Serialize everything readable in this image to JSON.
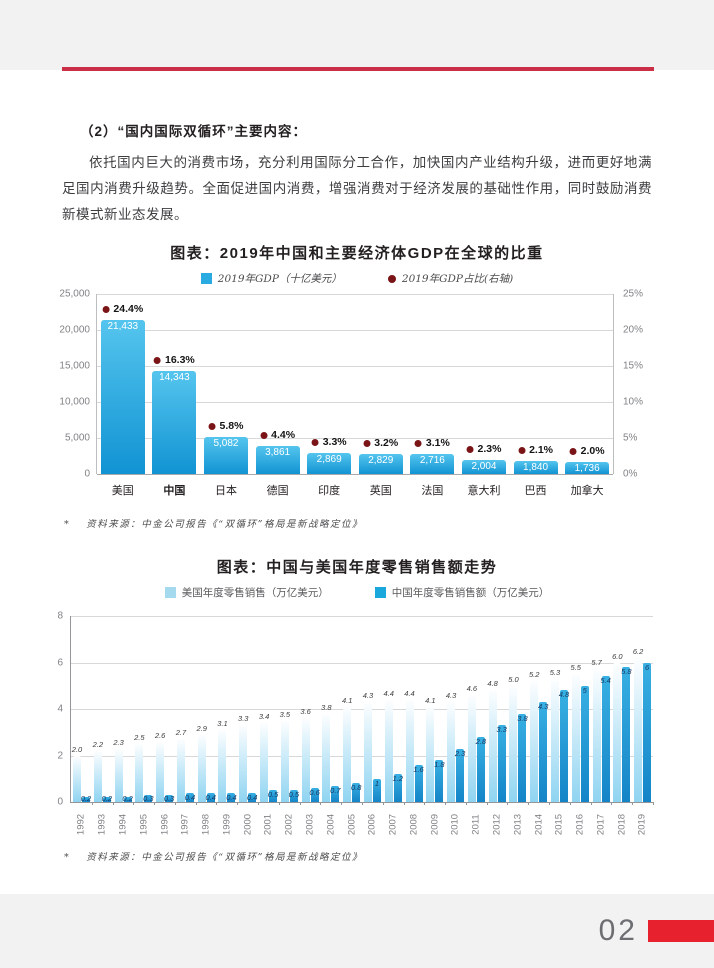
{
  "page": {
    "heading": "（2）“国内国际双循环”主要内容：",
    "paragraph": "依托国内巨大的消费市场，充分利用国际分工合作，加快国内产业结构升级，进而更好地满足国内消费升级趋势。全面促进国内消费，增强消费对于经济发展的基础性作用，同时鼓励消费新模式新业态发展。",
    "page_number": "02"
  },
  "source_note": {
    "star": "*",
    "text": "资料来源：中金公司报告《“双循环”格局是新战略定位》"
  },
  "colors": {
    "band_gray": "#f2f2f3",
    "header_rule_red": "#cb2e47",
    "footer_bar_red": "#e8212e",
    "gdp_bar_top": "#55c5ee",
    "gdp_bar_bottom": "#1193d3",
    "pct_dot_maroon": "#7a1416",
    "legend_gdp_swatch": "#29abe2",
    "us_bar_top": "#fdfeff",
    "us_bar_bottom": "#8fd4f1",
    "cn_bar_top": "#38b0e3",
    "cn_bar_bottom": "#1484c7",
    "legend_us_swatch": "#a5d9ee",
    "legend_cn_swatch": "#1aa7dc",
    "us_value_label": "#3c3c3c",
    "cn_value_label": "#16365f"
  },
  "chart_data": [
    {
      "type": "bar",
      "title": "图表：2019年中国和主要经济体GDP在全球的比重",
      "legend": [
        {
          "label": "2019年GDP（十亿美元）",
          "marker": "square"
        },
        {
          "label": "2019年GDP占比(右轴)",
          "marker": "circle"
        }
      ],
      "legend_position": "top",
      "grid": true,
      "categories": [
        "美国",
        "中国",
        "日本",
        "德国",
        "印度",
        "英国",
        "法国",
        "意大利",
        "巴西",
        "加拿大"
      ],
      "bold_category": "中国",
      "series": [
        {
          "name": "2019年GDP（十亿美元）",
          "axis": "left",
          "values": [
            21433,
            14343,
            5082,
            3861,
            2869,
            2829,
            2716,
            2004,
            1840,
            1736
          ],
          "labels": [
            "21,433",
            "14,343",
            "5,082",
            "3,861",
            "2,869",
            "2,829",
            "2,716",
            "2,004",
            "1,840",
            "1,736"
          ]
        },
        {
          "name": "2019年GDP占比(右轴)",
          "axis": "right",
          "values": [
            24.4,
            16.3,
            5.8,
            4.4,
            3.3,
            3.2,
            3.1,
            2.3,
            2.1,
            2.0
          ],
          "labels": [
            "24.4%",
            "16.3%",
            "5.8%",
            "4.4%",
            "3.3%",
            "3.2%",
            "3.1%",
            "2.3%",
            "2.1%",
            "2.0%"
          ]
        }
      ],
      "left_axis": {
        "min": 0,
        "max": 25000,
        "ticks": [
          "25,000",
          "20,000",
          "15,000",
          "10,000",
          "5,000",
          "0"
        ]
      },
      "right_axis": {
        "min": 0,
        "max": 25,
        "ticks": [
          "25%",
          "20%",
          "15%",
          "10%",
          "5%",
          "0%"
        ]
      }
    },
    {
      "type": "bar",
      "title": "图表：中国与美国年度零售销售额走势",
      "legend": [
        {
          "label": "美国年度零售销售（万亿美元）",
          "marker": "square"
        },
        {
          "label": "中国年度零售销售额（万亿美元）",
          "marker": "square"
        }
      ],
      "legend_position": "top",
      "grid": true,
      "categories": [
        "1992",
        "1993",
        "1994",
        "1995",
        "1996",
        "1997",
        "1998",
        "1999",
        "2000",
        "2001",
        "2002",
        "2003",
        "2004",
        "2005",
        "2006",
        "2007",
        "2008",
        "2009",
        "2010",
        "2011",
        "2012",
        "2013",
        "2014",
        "2015",
        "2016",
        "2017",
        "2018",
        "2019"
      ],
      "series": [
        {
          "name": "美国年度零售销售（万亿美元）",
          "values": [
            2.0,
            2.2,
            2.3,
            2.5,
            2.6,
            2.7,
            2.9,
            3.1,
            3.3,
            3.4,
            3.5,
            3.6,
            3.8,
            4.1,
            4.3,
            4.4,
            4.4,
            4.1,
            4.3,
            4.6,
            4.8,
            5.0,
            5.2,
            5.3,
            5.5,
            5.7,
            6.0,
            6.2
          ],
          "labels": [
            "2.0",
            "2.2",
            "2.3",
            "2.5",
            "2.6",
            "2.7",
            "2.9",
            "3.1",
            "3.3",
            "3.4",
            "3.5",
            "3.6",
            "3.8",
            "4.1",
            "4.3",
            "4.4",
            "4.4",
            "4.1",
            "4.3",
            "4.6",
            "4.8",
            "5.0",
            "5.2",
            "5.3",
            "5.5",
            "5.7",
            "6.0",
            "6.2"
          ]
        },
        {
          "name": "中国年度零售销售额（万亿美元）",
          "values": [
            0.2,
            0.2,
            0.2,
            0.3,
            0.3,
            0.4,
            0.4,
            0.4,
            0.4,
            0.5,
            0.5,
            0.6,
            0.7,
            0.8,
            1,
            1.2,
            1.6,
            1.8,
            2.3,
            2.8,
            3.3,
            3.8,
            4.3,
            4.8,
            5,
            5.4,
            5.8,
            6
          ],
          "labels": [
            "0.2",
            "0.2",
            "0.2",
            "0.3",
            "0.3",
            "0.4",
            "0.4",
            "0.4",
            "0.4",
            "0.5",
            "0.5",
            "0.6",
            "0.7",
            "0.8",
            "1",
            "1.2",
            "1.6",
            "1.8",
            "2.3",
            "2.8",
            "3.3",
            "3.8",
            "4.3",
            "4.8",
            "5",
            "5.4",
            "5.8",
            "6"
          ]
        }
      ],
      "y_axis": {
        "min": 0,
        "max": 8,
        "ticks": [
          "8",
          "6",
          "4",
          "2",
          "0"
        ]
      }
    }
  ]
}
